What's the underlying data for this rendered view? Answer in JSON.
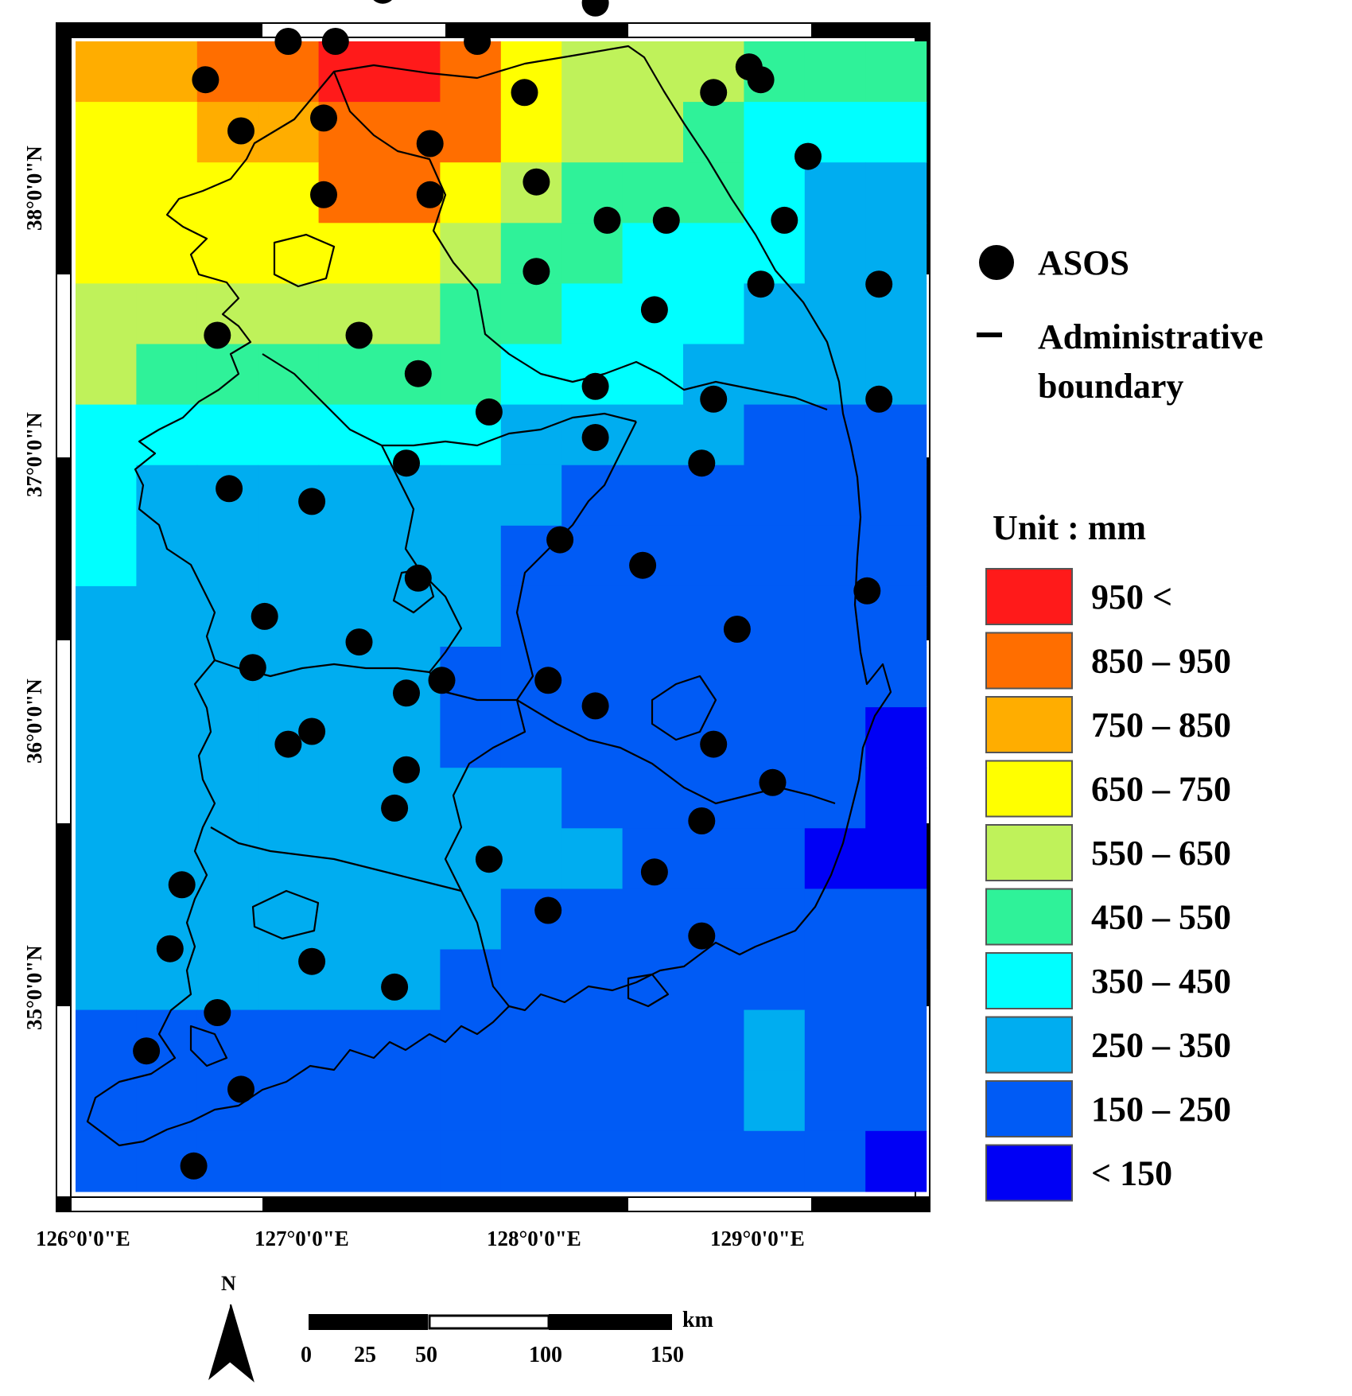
{
  "grid": {
    "lon_range": [
      126.0,
      129.6
    ],
    "lat_range": [
      37.9,
      33.4
    ],
    "cols": 14,
    "rows": 19,
    "bins": [
      [
        7,
        7,
        8,
        8,
        9,
        9,
        8,
        6,
        5,
        5,
        5,
        4,
        4,
        4
      ],
      [
        6,
        6,
        7,
        7,
        8,
        8,
        8,
        6,
        5,
        5,
        4,
        3,
        3,
        3
      ],
      [
        6,
        6,
        6,
        6,
        8,
        8,
        6,
        5,
        4,
        4,
        4,
        3,
        2,
        2
      ],
      [
        6,
        6,
        6,
        6,
        6,
        6,
        5,
        4,
        4,
        3,
        3,
        3,
        2,
        2
      ],
      [
        5,
        5,
        5,
        5,
        5,
        5,
        4,
        4,
        3,
        3,
        3,
        2,
        2,
        2
      ],
      [
        5,
        4,
        4,
        4,
        4,
        4,
        4,
        3,
        3,
        3,
        2,
        2,
        2,
        2
      ],
      [
        3,
        3,
        3,
        3,
        3,
        3,
        3,
        2,
        2,
        2,
        2,
        1,
        1,
        1
      ],
      [
        3,
        2,
        2,
        2,
        2,
        2,
        2,
        2,
        1,
        1,
        1,
        1,
        1,
        1
      ],
      [
        3,
        2,
        2,
        2,
        2,
        2,
        2,
        1,
        1,
        1,
        1,
        1,
        1,
        1
      ],
      [
        2,
        2,
        2,
        2,
        2,
        2,
        2,
        1,
        1,
        1,
        1,
        1,
        1,
        1
      ],
      [
        2,
        2,
        2,
        2,
        2,
        2,
        1,
        1,
        1,
        1,
        1,
        1,
        1,
        1
      ],
      [
        2,
        2,
        2,
        2,
        2,
        2,
        1,
        1,
        1,
        1,
        1,
        1,
        1,
        0
      ],
      [
        2,
        2,
        2,
        2,
        2,
        2,
        2,
        2,
        1,
        1,
        1,
        1,
        1,
        0
      ],
      [
        2,
        2,
        2,
        2,
        2,
        2,
        2,
        2,
        2,
        1,
        1,
        1,
        0,
        0
      ],
      [
        2,
        2,
        2,
        2,
        2,
        2,
        2,
        1,
        1,
        1,
        1,
        1,
        1,
        1
      ],
      [
        2,
        2,
        2,
        2,
        2,
        2,
        1,
        1,
        1,
        1,
        1,
        1,
        1,
        1
      ],
      [
        1,
        1,
        1,
        1,
        1,
        1,
        1,
        1,
        1,
        1,
        1,
        2,
        1,
        1
      ],
      [
        1,
        1,
        1,
        1,
        1,
        1,
        1,
        1,
        1,
        1,
        1,
        2,
        1,
        1
      ],
      [
        1,
        1,
        1,
        1,
        1,
        1,
        1,
        1,
        1,
        1,
        1,
        1,
        1,
        0
      ]
    ]
  },
  "stations": [
    [
      38.3,
      128.5
    ],
    [
      38.05,
      128.2
    ],
    [
      38.1,
      127.3
    ],
    [
      37.9,
      126.9
    ],
    [
      37.9,
      127.1
    ],
    [
      37.9,
      127.7
    ],
    [
      37.8,
      128.85
    ],
    [
      37.75,
      128.9
    ],
    [
      37.75,
      126.55
    ],
    [
      37.7,
      127.9
    ],
    [
      37.7,
      128.7
    ],
    [
      37.6,
      127.05
    ],
    [
      37.55,
      126.7
    ],
    [
      37.5,
      127.5
    ],
    [
      37.45,
      129.1
    ],
    [
      37.35,
      127.95
    ],
    [
      37.3,
      127.05
    ],
    [
      37.3,
      127.5
    ],
    [
      37.2,
      128.25
    ],
    [
      37.2,
      128.5
    ],
    [
      37.2,
      129.0
    ],
    [
      37.0,
      127.95
    ],
    [
      36.95,
      128.9
    ],
    [
      36.95,
      129.4
    ],
    [
      36.85,
      128.45
    ],
    [
      36.75,
      126.6
    ],
    [
      36.75,
      127.2
    ],
    [
      36.6,
      127.45
    ],
    [
      36.55,
      128.2
    ],
    [
      36.5,
      128.7
    ],
    [
      36.5,
      129.4
    ],
    [
      36.45,
      127.75
    ],
    [
      36.35,
      128.2
    ],
    [
      36.25,
      127.4
    ],
    [
      36.25,
      128.65
    ],
    [
      36.15,
      126.65
    ],
    [
      36.1,
      127.0
    ],
    [
      35.95,
      128.05
    ],
    [
      35.85,
      128.4
    ],
    [
      35.8,
      127.45
    ],
    [
      35.75,
      129.35
    ],
    [
      35.65,
      126.8
    ],
    [
      35.6,
      128.8
    ],
    [
      35.55,
      127.2
    ],
    [
      35.45,
      126.75
    ],
    [
      35.4,
      127.55
    ],
    [
      35.4,
      128.0
    ],
    [
      35.35,
      127.4
    ],
    [
      35.3,
      128.2
    ],
    [
      35.2,
      127.0
    ],
    [
      35.15,
      128.7
    ],
    [
      35.15,
      126.9
    ],
    [
      35.05,
      127.4
    ],
    [
      35.0,
      128.95
    ],
    [
      34.9,
      127.35
    ],
    [
      34.85,
      128.65
    ],
    [
      34.7,
      127.75
    ],
    [
      34.65,
      128.45
    ],
    [
      34.6,
      126.45
    ],
    [
      34.5,
      128.0
    ],
    [
      34.4,
      128.65
    ],
    [
      34.35,
      126.4
    ],
    [
      34.3,
      127.0
    ],
    [
      34.2,
      127.35
    ],
    [
      34.1,
      126.6
    ],
    [
      33.95,
      126.3
    ],
    [
      33.8,
      126.7
    ],
    [
      33.5,
      126.5
    ]
  ],
  "palette": [
    "#0000f5",
    "#005bf5",
    "#00adf0",
    "#00ffff",
    "#2ff299",
    "#bff25a",
    "#ffff00",
    "#ffad00",
    "#ff6e00",
    "#ff1a1a"
  ],
  "frame": {
    "x_labels": [
      "126°0'0\"E",
      "127°0'0\"E",
      "128°0'0\"E",
      "129°0'0\"E"
    ],
    "y_labels": [
      "38°0'0\"N",
      "37°0'0\"N",
      "36°0'0\"N",
      "35°0'0\"N"
    ]
  },
  "legend": {
    "asos_label": "ASOS",
    "boundary_label_1": "Administrative",
    "boundary_label_2": "boundary",
    "unit_label": "Unit : mm",
    "classes": [
      {
        "label": "950  <",
        "color": "#ff1a1a"
      },
      {
        "label": "850 – 950",
        "color": "#ff6e00"
      },
      {
        "label": "750 – 850",
        "color": "#ffad00"
      },
      {
        "label": "650 – 750",
        "color": "#ffff00"
      },
      {
        "label": "550 – 650",
        "color": "#bff25a"
      },
      {
        "label": "450 – 550",
        "color": "#2ff299"
      },
      {
        "label": "350 – 450",
        "color": "#00ffff"
      },
      {
        "label": "250 – 350",
        "color": "#00adf0"
      },
      {
        "label": "150 – 250",
        "color": "#005bf5"
      },
      {
        "label": "< 150",
        "color": "#0000f5"
      }
    ]
  },
  "north_arrow": {
    "label": "N"
  },
  "scale_bar": {
    "unit": "km",
    "ticks": [
      "0",
      "25",
      "50",
      "100",
      "150"
    ]
  }
}
